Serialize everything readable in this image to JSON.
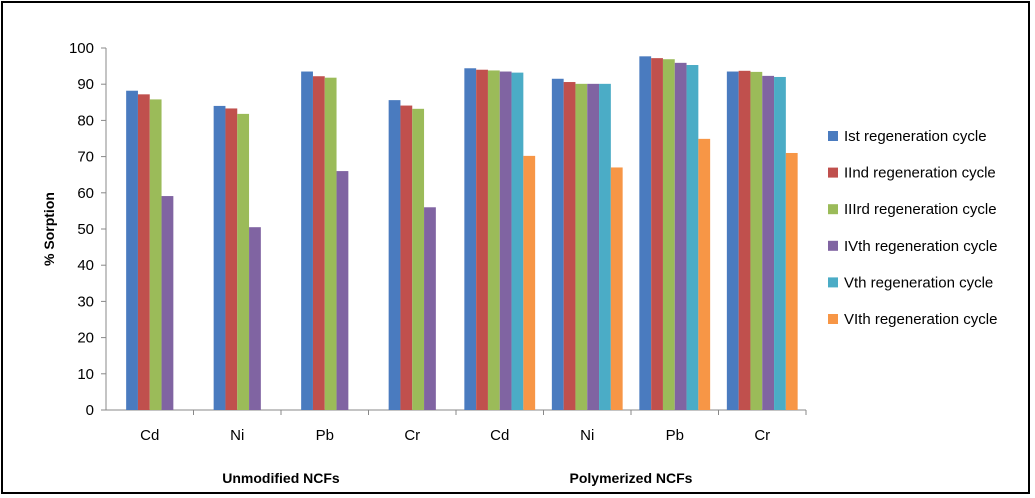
{
  "chart_data": {
    "type": "bar",
    "ylabel": "% Sorption",
    "ylim": [
      0,
      100
    ],
    "ytick_step": 10,
    "grid": false,
    "legend_position": "right",
    "groups": [
      {
        "label": "Unmodified NCFs",
        "categories": [
          "Cd",
          "Ni",
          "Pb",
          "Cr"
        ]
      },
      {
        "label": "Polymerized NCFs",
        "categories": [
          "Cd",
          "Ni",
          "Pb",
          "Cr"
        ]
      }
    ],
    "categories": [
      "Cd",
      "Ni",
      "Pb",
      "Cr",
      "Cd",
      "Ni",
      "Pb",
      "Cr"
    ],
    "series": [
      {
        "name": "Ist regeneration cycle",
        "color": "#4a7bbf",
        "values": [
          88.2,
          84.0,
          93.5,
          85.6,
          94.4,
          91.5,
          97.7,
          93.5
        ]
      },
      {
        "name": "IInd regeneration cycle",
        "color": "#c0504d",
        "values": [
          87.2,
          83.3,
          92.2,
          84.1,
          94.0,
          90.6,
          97.2,
          93.7
        ]
      },
      {
        "name": "IIIrd regeneration cycle",
        "color": "#9bbb59",
        "values": [
          85.8,
          81.8,
          91.8,
          83.2,
          93.8,
          90.1,
          96.9,
          93.4
        ]
      },
      {
        "name": "IVth regeneration cycle",
        "color": "#8064a2",
        "values": [
          59.1,
          50.5,
          66.0,
          56.0,
          93.5,
          90.1,
          95.9,
          92.3
        ]
      },
      {
        "name": "Vth regeneration cycle",
        "color": "#4bacc6",
        "values": [
          null,
          null,
          null,
          null,
          93.2,
          90.1,
          95.3,
          92.0
        ]
      },
      {
        "name": "VIth regeneration cycle",
        "color": "#f79646",
        "values": [
          null,
          null,
          null,
          null,
          70.2,
          67.0,
          74.9,
          71.0
        ]
      }
    ]
  }
}
